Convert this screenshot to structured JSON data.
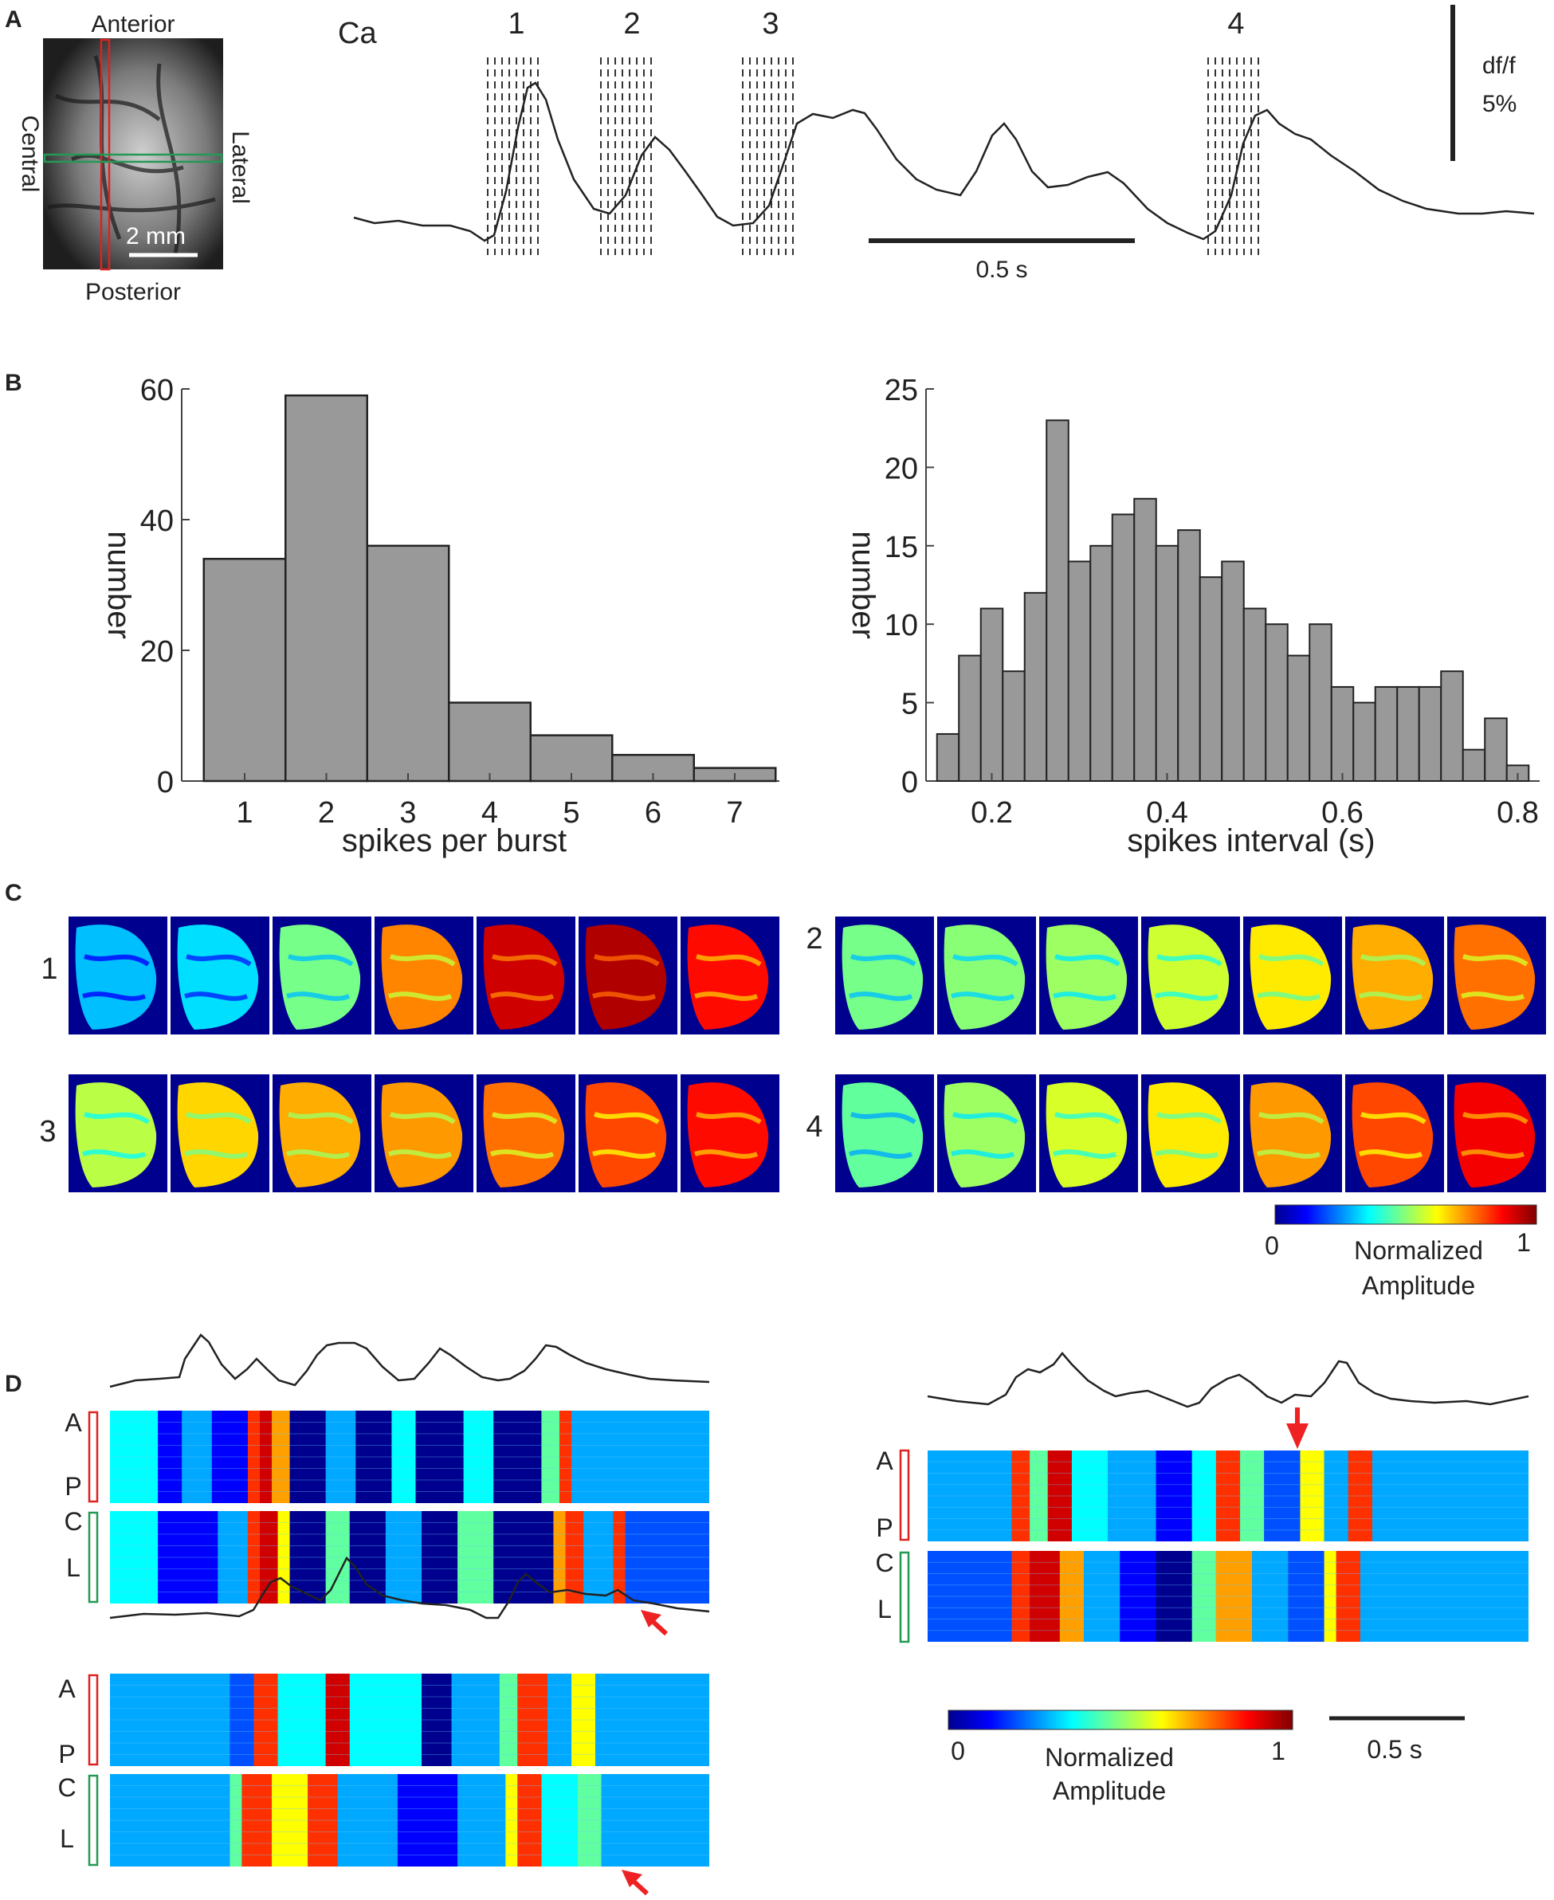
{
  "panels": {
    "A": {
      "letter": "A",
      "brain_labels": {
        "top": "Anterior",
        "bottom": "Posterior",
        "left": "Central",
        "right": "Lateral"
      },
      "scale_mm": "2 mm",
      "trace_label": "Ca",
      "burst_labels": [
        "1",
        "2",
        "3",
        "4"
      ],
      "scale_time": "0.5 s",
      "scale_df_line1": "df/f",
      "scale_df_line2": "5%"
    },
    "B": {
      "letter": "B"
    },
    "C": {
      "letter": "C",
      "row_labels": [
        "1",
        "2",
        "3",
        "4"
      ],
      "colorbar": {
        "min": "0",
        "max": "1",
        "label_line1": "Normalized",
        "label_line2": "Amplitude"
      }
    },
    "D": {
      "letter": "D",
      "row_labels": {
        "A": "A",
        "P": "P",
        "C": "C",
        "L": "L"
      },
      "colorbar": {
        "min": "0",
        "max": "1",
        "label_line1": "Normalized",
        "label_line2": "Amplitude"
      },
      "scale_time": "0.5 s"
    }
  },
  "chart_data": [
    {
      "id": "spikes-per-burst",
      "type": "bar",
      "categories": [
        "1",
        "2",
        "3",
        "4",
        "5",
        "6",
        "7"
      ],
      "values": [
        34,
        59,
        36,
        12,
        7,
        4,
        2
      ],
      "xlabel": "spikes per burst",
      "ylabel": "number",
      "ylim": [
        0,
        60
      ],
      "yticks": [
        "0",
        "20",
        "40",
        "60"
      ],
      "xticks": [
        "1",
        "2",
        "3",
        "4",
        "5",
        "6",
        "7"
      ]
    },
    {
      "id": "spikes-interval",
      "type": "bar",
      "bin_start": 0.15,
      "bin_width": 0.025,
      "values": [
        3,
        8,
        11,
        7,
        12,
        23,
        14,
        15,
        17,
        18,
        15,
        16,
        13,
        14,
        11,
        10,
        8,
        10,
        6,
        5,
        6,
        6,
        6,
        7,
        2,
        4,
        1
      ],
      "xlabel": "spikes interval (s)",
      "ylabel": "number",
      "xlim": [
        0.125,
        0.825
      ],
      "ylim": [
        0,
        25
      ],
      "yticks": [
        "0",
        "5",
        "10",
        "15",
        "20",
        "25"
      ],
      "xticks": [
        "0.2",
        "0.4",
        "0.6",
        "0.8"
      ]
    }
  ],
  "colors": {
    "bar_fill": "#999999",
    "axis": "#444444",
    "red_marker": "#dd2222",
    "green_marker": "#229955",
    "arrow": "#ee2222"
  }
}
